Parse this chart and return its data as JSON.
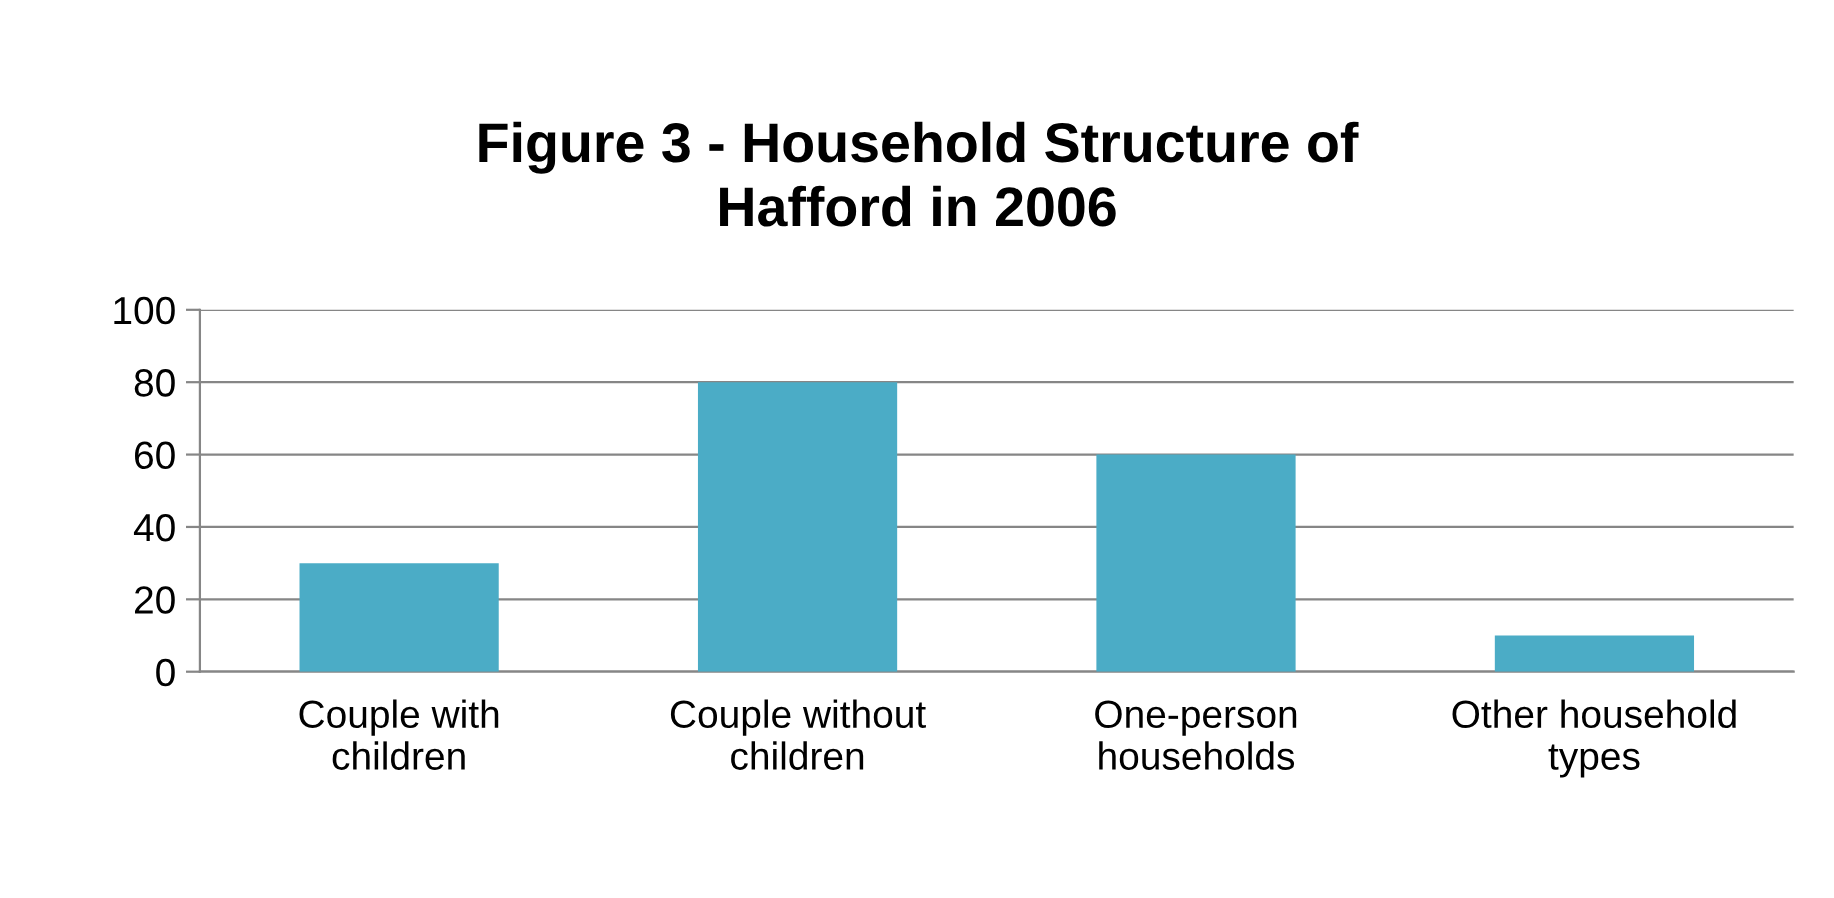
{
  "chart_data": {
    "type": "bar",
    "title": "Figure 3 - Household Structure of Hafford in 2006",
    "categories": [
      "Couple with children",
      "Couple without children",
      "One-person households",
      "Other household types"
    ],
    "values": [
      30,
      80,
      60,
      10
    ],
    "color": "#4bacc6",
    "ylim": [
      0,
      100
    ],
    "yticks": [
      0,
      20,
      40,
      60,
      80,
      100
    ],
    "grid": "y",
    "legend": false
  }
}
